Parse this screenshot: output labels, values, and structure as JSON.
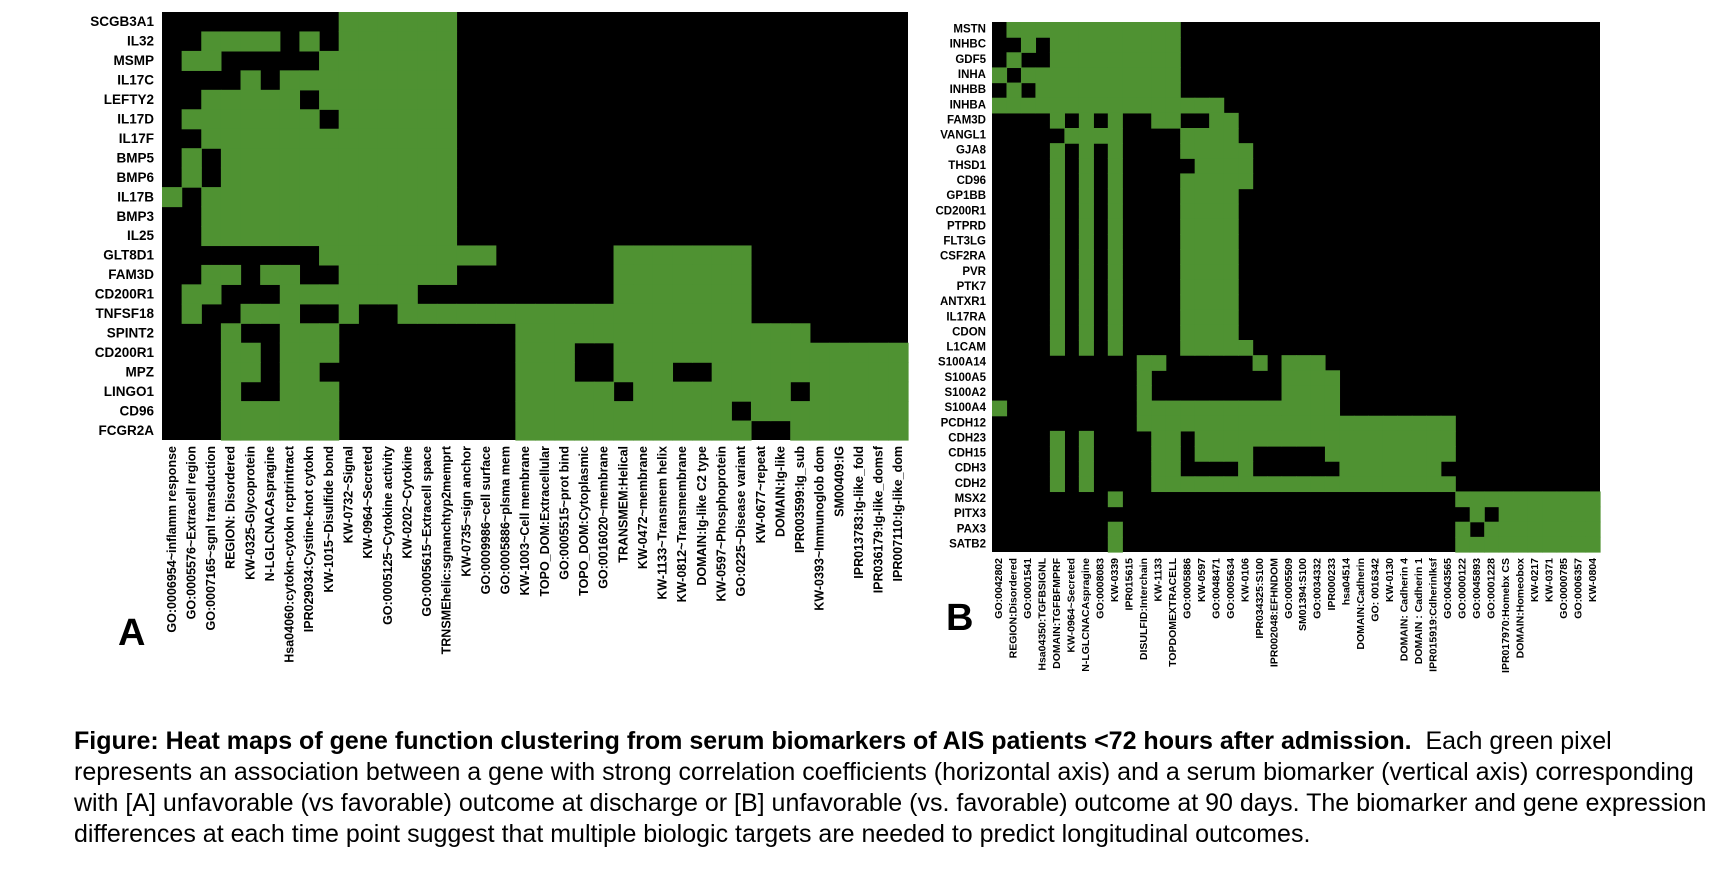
{
  "colors": {
    "on": "#4f9232",
    "off": "#000000"
  },
  "panels": [
    {
      "letter": "A"
    },
    {
      "letter": "B"
    }
  ],
  "caption": {
    "title": "Figure: Heat maps of gene function clustering from serum biomarkers of AIS patients <72 hours after admission.",
    "body": "Each green pixel represents an association between a gene with strong correlation coefficients (horizontal axis) and a serum biomarker (vertical axis) corresponding with [A] unfavorable (vs favorable) outcome at discharge or [B] unfavorable (vs. favorable) outcome at 90 days.  The biomarker and gene expression differences at each time point suggest that multiple biologic targets are needed to predict longitudinal outcomes."
  },
  "chart_data": [
    {
      "type": "heatmap",
      "panel": "A",
      "ylabels": [
        "SCGB3A1",
        "IL32",
        "MSMP",
        "IL17C",
        "LEFTY2",
        "IL17D",
        "IL17F",
        "BMP5",
        "BMP6",
        "IL17B",
        "BMP3",
        "IL25",
        "GLT8D1",
        "FAM3D",
        "CD200R1",
        "TNFSF18",
        "SPINT2",
        "CD200R1",
        "MPZ",
        "LINGO1",
        "CD96",
        "FCGR2A"
      ],
      "xlabels": [
        "GO:0006954~inflamm response",
        "GO:0005576~Extracell region",
        "GO:0007165~sgnl transduction",
        "REGION: Disordered",
        "KW-0325-Glycoprotein",
        "N-LGLCNACAspragine",
        "Hsa04060:cytokn-cytokn rcptrintract",
        "IPR029034:Cystine-knot cytokn",
        "KW-1015~Disulfide bond",
        "KW-0732~Signal",
        "KW-0964~Secreted",
        "GO:0005125~Cytokine activity",
        "KW-0202~Cytokine",
        "GO:0005615~Extracell space",
        "TRNSMEhelic:sgnanchtyp2memprt",
        "KW-0735~sign anchor",
        "GO:0009986~cell surface",
        "GO:0005886~plsma mem",
        "KW-1003~Cell membrane",
        "TOPO_DOM:Extracellular",
        "GO:0005515~prot bind",
        "TOPO_DOM:Cytoplasmic",
        "GO:0016020~membrane",
        "TRANSMEM:Helical",
        "KW-0472~membrane",
        "KW-1133~Transmem helix",
        "KW-0812~Transmembrane",
        "DOMAIN:Ig-like C2 type",
        "KW-0597~Phosphoprotein",
        "GO:0225~Disease variant",
        "KW-0677~repeat",
        "DOMAIN:Ig-like",
        "IPR003599:Ig_sub",
        "KW-0393~Immunoglob dom",
        "SM00409:IG",
        "IPR013783:Ig-like_fold",
        "IPR036179:Ig-like_domsf",
        "IPR007110:Ig-like_dom"
      ],
      "matrix": [
        "00000000011111100000000000000000000000",
        "00111101011111100000000000000000000000",
        "01100000111111100000000000000000000000",
        "00001011111111100000000000000000000000",
        "00111110111111100000000000000000000000",
        "01111111011111100000000000000000000000",
        "00111111111111100000000000000000000000",
        "01011111111111100000000000000000000000",
        "01011111111111100000000000000000000000",
        "10111111111111100000000000000000000000",
        "00111111111111100000000000000000000000",
        "00111111111111100000000000000000000000",
        "00000000111111111000000111111100000000",
        "00110110011111100000000111111100000000",
        "01100011111110000000000111111100000000",
        "01001110010011111111111111111100000000",
        "00010011100000000011111111111111100000",
        "00011011100000000011100111111111111111",
        "00011011000000000011100111001111111111",
        "00010011100000000011111011111111011111",
        "00011111100000000011111111111011111111",
        "00011111100000000011111111111100111111"
      ]
    },
    {
      "type": "heatmap",
      "panel": "B",
      "ylabels": [
        "MSTN",
        "INHBC",
        "GDF5",
        "INHA",
        "INHBB",
        "INHBA",
        "FAM3D",
        "VANGL1",
        "GJA8",
        "THSD1",
        "CD96",
        "GP1BB",
        "CD200R1",
        "PTPRD",
        "FLT3LG",
        "CSF2RA",
        "PVR",
        "PTK7",
        "ANTXR1",
        "IL17RA",
        "CDON",
        "L1CAM",
        "S100A14",
        "S100A5",
        "S100A2",
        "S100A4",
        "PCDH12",
        "CDH23",
        "CDH15",
        "CDH3",
        "CDH2",
        "MSX2",
        "PITX3",
        "PAX3",
        "SATB2"
      ],
      "xlabels": [
        "GO:0042802",
        "REGION:Disordered",
        "GO:0001541",
        "Hsa04350:TGFBSIGNL",
        "DOMAIN:TGFBFMPRF",
        "KW-0964~Secreted",
        "N-LGLCNACAspragine",
        "GO:0008083",
        "KW-0339",
        "IPR015615",
        "DISULFID:Interchain",
        "KW-1133",
        "TOPDOMEXTRACELL",
        "GO:0005886",
        "KW-0597",
        "GO:0048471",
        "GO:0005634",
        "KW-0106",
        "IPR034325:S100",
        "IPR002048:EFHNDOM",
        "GO:0005509",
        "SM01394:S100",
        "GO:0034332",
        "IPR000233",
        "hsa04514",
        "DOMAIN:Cadherin",
        "GO: 0016342",
        "KW-0130",
        "DOMAIN: Cadherin 4",
        "DOMAIN : Cadherin 1",
        "IPR015919:Cdherinlksf",
        "GO:0043565",
        "GO:0000122",
        "GO:0045893",
        "GO:0001228",
        "IPR017970:Homebx CS",
        "DOMAIN:Homeobox",
        "KW-0217",
        "KW-0371",
        "GO:0000785",
        "GO:0006357",
        "KW-0804"
      ],
      "matrix": [
        "011111111111100000000000000000000000000000",
        "001011111111100000000000000000000000000000",
        "010011111111100000000000000000000000000000",
        "101111111111100000000000000000000000000000",
        "010111111111100000000000000000000000000000",
        "111111111111111100000000000000000000000000",
        "000010101001100110000000000000000000000000",
        "000001111000011110000000000000000000000000",
        "000010101000011111000000000000000000000000",
        "000010101000001111000000000000000000000000",
        "000010101000011111000000000000000000000000",
        "000010101000011110000000000000000000000000",
        "000010101000011110000000000000000000000000",
        "000010101000011110000000000000000000000000",
        "000010101000011110000000000000000000000000",
        "000010101000011110000000000000000000000000",
        "000010101000011110000000000000000000000000",
        "000010101000011110000000000000000000000000",
        "000010101000011110000000000000000000000000",
        "000010101000011110000000000000000000000000",
        "000010101000011110000000000000000000000000",
        "000010101000011111000000000000000000000000",
        "000000000011000000101110000000000000000000",
        "000000000010000000001111000000000000000000",
        "000000000010000000001111000000000000000000",
        "100000000011111111111111000000000000000000",
        "000000000011111111111111111111110000000000",
        "000010100001101111111111111111110000000000",
        "000010100001101111000001111111110000000000",
        "000010100001100001000000111111100000000000",
        "000010100001111111111111111111110000000000",
        "000000001000000000000000000000001111111111",
        "000000000000000000000000000000000101111111",
        "000000001000000000000000000000001011111111",
        "000000001000000000000000000000001111111111"
      ]
    }
  ]
}
